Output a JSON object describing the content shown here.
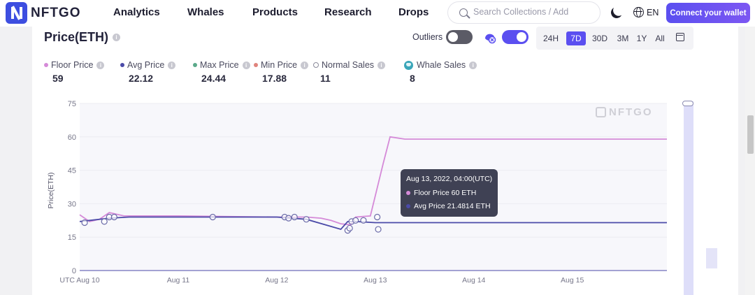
{
  "nav": {
    "brand": "NFTGO",
    "links": [
      "Analytics",
      "Whales",
      "Products",
      "Research",
      "Drops"
    ],
    "search_placeholder": "Search Collections / Add",
    "language": "EN",
    "connect_label": "Connect your wallet"
  },
  "card": {
    "title": "Price(ETH)",
    "outliers_label": "Outliers",
    "outliers_on": false,
    "whale_toggle_on": true,
    "ranges": [
      "24H",
      "7D",
      "30D",
      "3M",
      "1Y",
      "All"
    ],
    "active_range": "7D"
  },
  "stats": [
    {
      "label": "Floor Price",
      "value": "59",
      "color": "#d58ad8",
      "marker": "dot"
    },
    {
      "label": "Avg Price",
      "value": "22.12",
      "color": "#4b4aa8",
      "marker": "dot"
    },
    {
      "label": "Max Price",
      "value": "24.44",
      "color": "#5aa98a",
      "marker": "dot"
    },
    {
      "label": "Min Price",
      "value": "17.88",
      "color": "#e0837c",
      "marker": "dot"
    },
    {
      "label": "Normal Sales",
      "value": "11",
      "color": "#8a8a9a",
      "marker": "ring"
    },
    {
      "label": "Whale Sales",
      "value": "8",
      "color": "#3aa6b9",
      "marker": "whale"
    }
  ],
  "watermark": "NFTGO",
  "tooltip": {
    "time": "Aug 13, 2022, 04:00(UTC)",
    "floor": "Floor Price 60 ETH",
    "avg": "Avg Price 21.4814 ETH"
  },
  "chart_data": {
    "type": "line",
    "ylabel": "Price(ETH)",
    "ylim": [
      0,
      75
    ],
    "yticks": [
      "75",
      "60",
      "45",
      "30",
      "15",
      "0"
    ],
    "xlabels": [
      "UTC Aug 10",
      "Aug 11",
      "Aug 12",
      "Aug 13",
      "Aug 14",
      "Aug 15"
    ],
    "xlim": [
      10.0,
      15.96
    ],
    "grid": true,
    "series": [
      {
        "name": "Floor Price",
        "color": "#d58ad8",
        "x": [
          10.0,
          10.1,
          10.2,
          10.3,
          10.45,
          11.0,
          12.0,
          12.3,
          12.45,
          12.55,
          12.65,
          12.75,
          12.8,
          12.95,
          13.08,
          13.15,
          13.3,
          14.0,
          15.0,
          15.96
        ],
        "y": [
          25,
          22,
          23,
          26,
          24.5,
          24.5,
          24,
          24,
          23.5,
          22.5,
          21,
          20.5,
          24,
          24.5,
          48,
          60,
          59,
          59,
          59,
          59
        ]
      },
      {
        "name": "Avg Price",
        "color": "#4b4aa8",
        "x": [
          10.0,
          10.3,
          10.5,
          11.0,
          12.0,
          12.3,
          12.65,
          12.72,
          12.8,
          13.0,
          13.15,
          14.0,
          15.0,
          15.96
        ],
        "y": [
          22,
          23.5,
          24,
          24,
          24,
          23,
          18.5,
          22,
          22,
          21.5,
          21.5,
          21.5,
          21.5,
          21.5
        ]
      }
    ],
    "scatter": [
      {
        "x": 10.05,
        "y": 21.5
      },
      {
        "x": 10.25,
        "y": 22
      },
      {
        "x": 10.3,
        "y": 24
      },
      {
        "x": 10.35,
        "y": 24
      },
      {
        "x": 11.35,
        "y": 24
      },
      {
        "x": 12.08,
        "y": 24
      },
      {
        "x": 12.12,
        "y": 23.5
      },
      {
        "x": 12.18,
        "y": 24
      },
      {
        "x": 12.3,
        "y": 23
      },
      {
        "x": 12.72,
        "y": 18
      },
      {
        "x": 12.74,
        "y": 19
      },
      {
        "x": 12.76,
        "y": 22
      },
      {
        "x": 12.8,
        "y": 22.5
      },
      {
        "x": 12.88,
        "y": 22.5
      },
      {
        "x": 13.03,
        "y": 18.5
      },
      {
        "x": 13.02,
        "y": 24
      }
    ]
  }
}
